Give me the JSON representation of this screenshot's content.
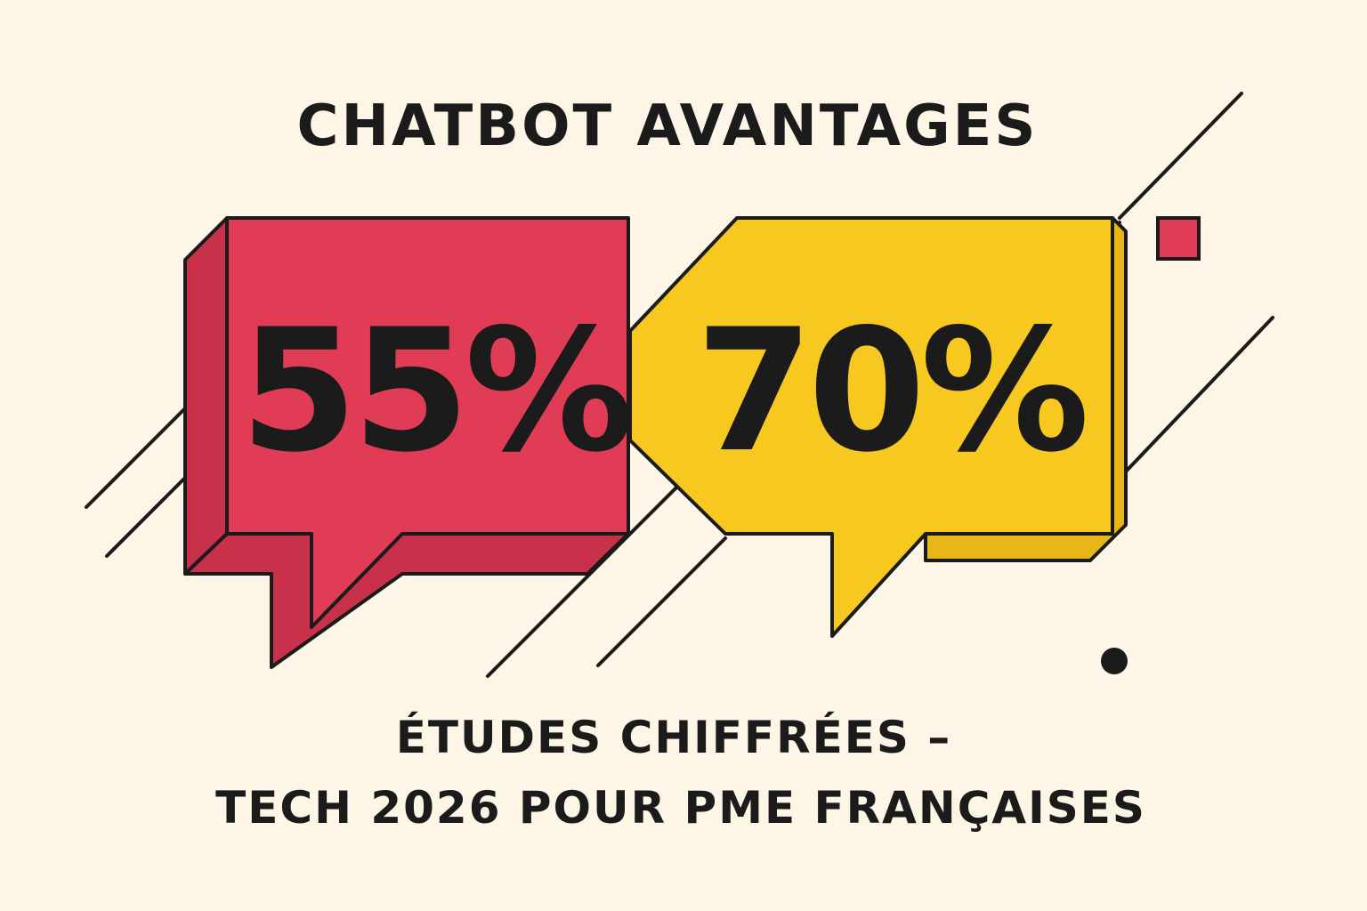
{
  "title": "CHATBOT AVANTAGES",
  "bubbles": [
    {
      "text": "55%"
    },
    {
      "text": "70%"
    }
  ],
  "subtitle": {
    "lines": [
      "ÉTUDES CHIFFRÉES –",
      "TECH 2026 POUR PME FRANÇAISES"
    ]
  }
}
